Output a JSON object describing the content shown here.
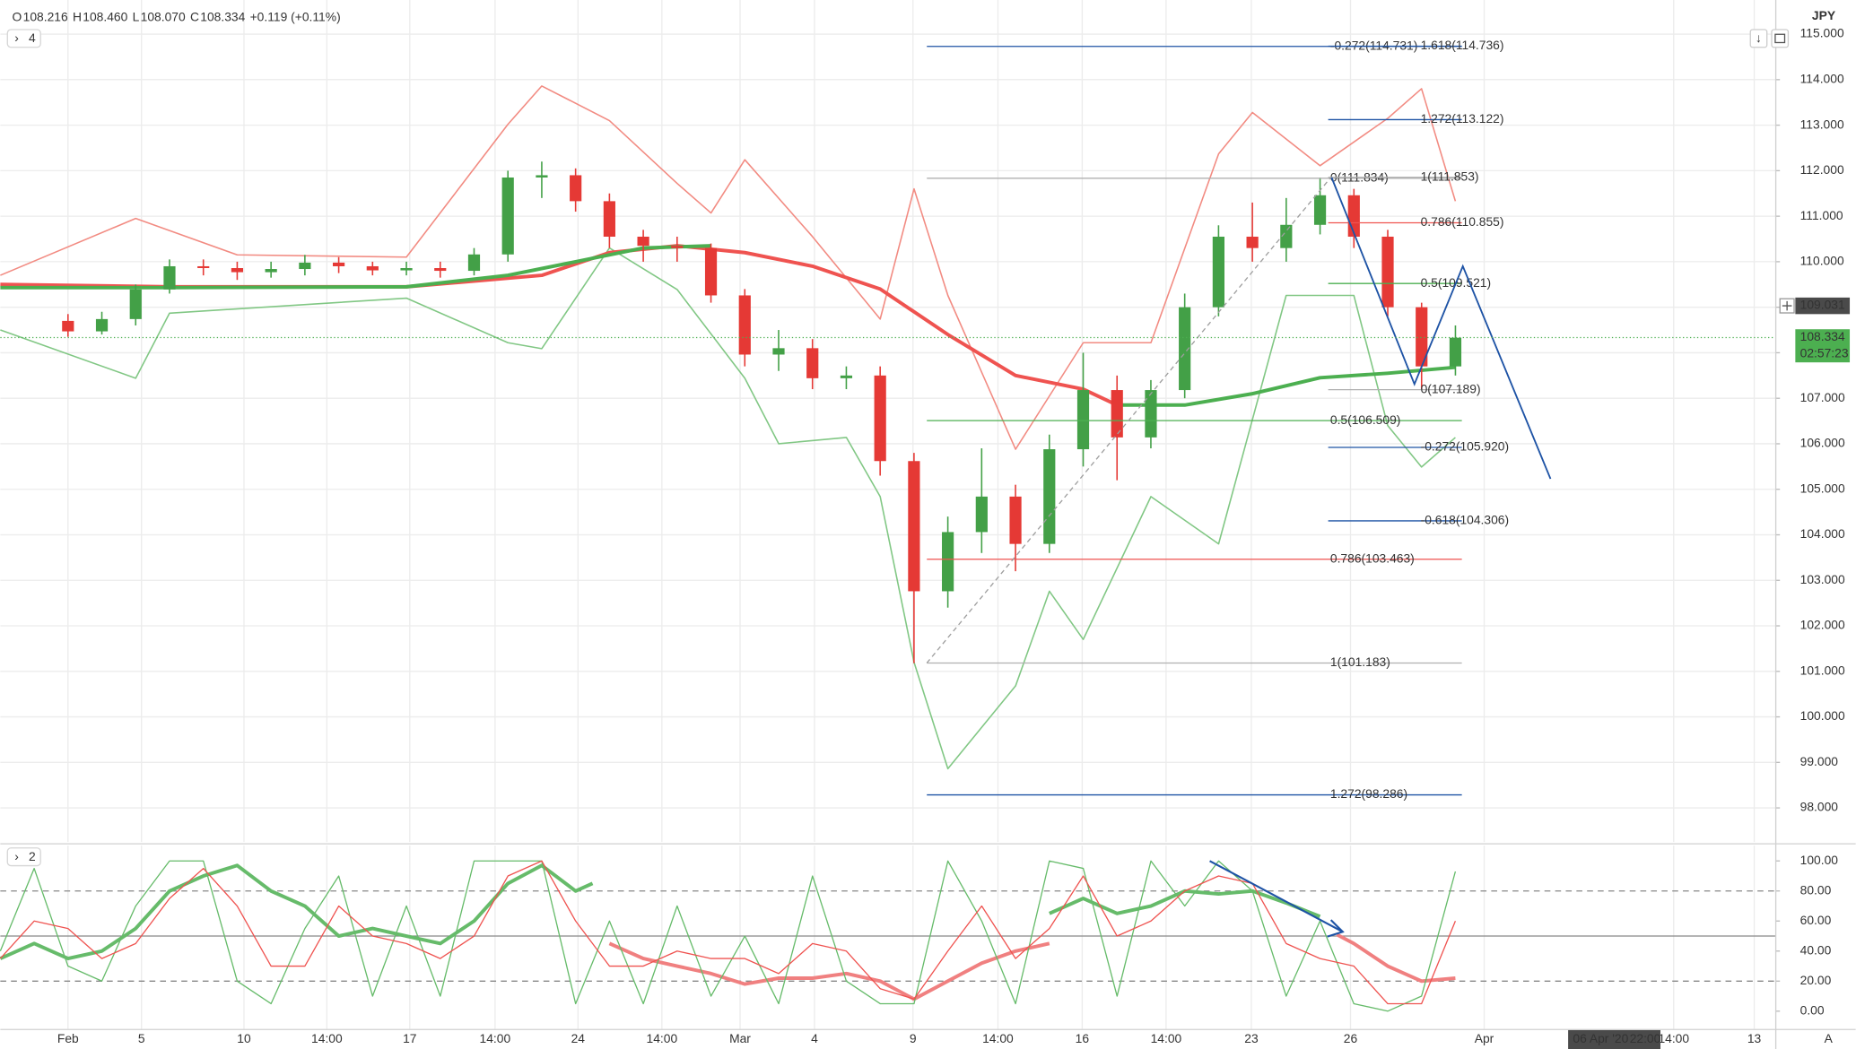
{
  "header": {
    "items": [
      {
        "key": "O",
        "value": "108.216"
      },
      {
        "key": "H",
        "value": "108.460"
      },
      {
        "key": "L",
        "value": "108.070"
      },
      {
        "key": "C",
        "value": "108.334"
      }
    ],
    "change": "+0.119 (+0.11%)"
  },
  "currency": "JPY",
  "auto_button": "A",
  "crosshair": {
    "price": 109.031,
    "date": "06 Apr '20",
    "time": "22:00"
  },
  "chart_data": [
    {
      "type": "candlestick",
      "indicator_count": "4",
      "up_color": "#43a047",
      "down_color": "#e53935",
      "grid": true,
      "xlim": [
        -2,
        50.45
      ],
      "ylim": [
        97.25,
        115.62
      ],
      "xticks": [
        {
          "value": 0,
          "label": "Feb"
        },
        {
          "value": 2.17,
          "label": "5"
        },
        {
          "value": 5.2,
          "label": "10"
        },
        {
          "value": 7.65,
          "label": "14:00"
        },
        {
          "value": 10.1,
          "label": "17"
        },
        {
          "value": 12.62,
          "label": "14:00"
        },
        {
          "value": 15.07,
          "label": "24"
        },
        {
          "value": 17.55,
          "label": "14:00"
        },
        {
          "value": 19.86,
          "label": "Mar"
        },
        {
          "value": 22.06,
          "label": "4"
        },
        {
          "value": 24.97,
          "label": "9"
        },
        {
          "value": 27.48,
          "label": "14:00"
        },
        {
          "value": 29.97,
          "label": "16"
        },
        {
          "value": 32.45,
          "label": "14:00"
        },
        {
          "value": 34.97,
          "label": "23"
        },
        {
          "value": 37.9,
          "label": "26"
        },
        {
          "value": 41.85,
          "label": "Apr"
        },
        {
          "value": 47.45,
          "label": "14:00"
        },
        {
          "value": 49.83,
          "label": "13"
        }
      ],
      "yticks": [
        {
          "value": 98,
          "label": "98.000"
        },
        {
          "value": 99,
          "label": "99.000"
        },
        {
          "value": 100,
          "label": "100.000"
        },
        {
          "value": 101,
          "label": "101.000"
        },
        {
          "value": 102,
          "label": "102.000"
        },
        {
          "value": 103,
          "label": "103.000"
        },
        {
          "value": 104,
          "label": "104.000"
        },
        {
          "value": 105,
          "label": "105.000"
        },
        {
          "value": 106,
          "label": "106.000"
        },
        {
          "value": 107,
          "label": "107.000"
        },
        {
          "value": 108,
          "label": "108.000"
        },
        {
          "value": 109,
          "label": "109.000"
        },
        {
          "value": 110,
          "label": "110.000"
        },
        {
          "value": 111,
          "label": "111.000"
        },
        {
          "value": 112,
          "label": "112.000"
        },
        {
          "value": 113,
          "label": "113.000"
        },
        {
          "value": 114,
          "label": "114.000"
        },
        {
          "value": 115,
          "label": "115.000"
        }
      ],
      "x": [
        0,
        1,
        2,
        3,
        4,
        5,
        6,
        7,
        8,
        9,
        10,
        11,
        12,
        13,
        14,
        15,
        16,
        17,
        18,
        19,
        20,
        21,
        22,
        23,
        24,
        25,
        26,
        27,
        28,
        29,
        30,
        31,
        32,
        33,
        34,
        35,
        36,
        37,
        38,
        39,
        40,
        41
      ],
      "open": [
        108.7,
        108.47,
        108.74,
        109.39,
        109.9,
        109.86,
        109.77,
        109.84,
        109.98,
        109.9,
        109.81,
        109.86,
        109.8,
        110.16,
        111.85,
        111.9,
        111.33,
        110.55,
        110.35,
        110.3,
        109.26,
        107.96,
        108.1,
        107.44,
        107.5,
        105.62,
        102.76,
        104.06,
        104.84,
        103.8,
        105.88,
        107.18,
        106.14,
        107.18,
        109.0,
        110.55,
        110.3,
        110.81,
        111.46,
        110.55,
        109.0,
        107.7
      ],
      "high": [
        108.85,
        108.9,
        109.5,
        110.05,
        110.05,
        110.0,
        110.0,
        110.15,
        110.1,
        110.0,
        110.0,
        110.0,
        110.3,
        112.0,
        112.2,
        112.05,
        111.5,
        110.7,
        110.55,
        110.4,
        109.4,
        108.5,
        108.3,
        107.7,
        107.7,
        105.8,
        104.4,
        105.9,
        105.1,
        106.2,
        108.0,
        107.5,
        107.4,
        109.3,
        110.8,
        111.3,
        111.4,
        111.85,
        111.6,
        110.7,
        109.1,
        108.6
      ],
      "low": [
        108.35,
        108.4,
        108.6,
        109.3,
        109.7,
        109.6,
        109.65,
        109.7,
        109.75,
        109.7,
        109.7,
        109.65,
        109.7,
        110.0,
        111.4,
        111.1,
        110.3,
        110.0,
        110.0,
        109.1,
        107.7,
        107.6,
        107.2,
        107.2,
        105.3,
        101.18,
        102.4,
        103.6,
        103.2,
        103.6,
        105.5,
        105.2,
        105.9,
        107.0,
        108.8,
        110.0,
        110.0,
        110.6,
        110.3,
        108.8,
        107.2,
        107.5
      ],
      "close": [
        108.47,
        108.74,
        109.39,
        109.9,
        109.86,
        109.77,
        109.84,
        109.98,
        109.9,
        109.81,
        109.86,
        109.8,
        110.16,
        111.85,
        111.9,
        111.33,
        110.55,
        110.35,
        110.3,
        109.26,
        107.96,
        108.1,
        107.44,
        107.5,
        105.62,
        102.76,
        104.06,
        104.84,
        103.8,
        105.88,
        107.18,
        106.14,
        107.18,
        109.0,
        110.55,
        110.3,
        110.81,
        111.46,
        110.55,
        109.0,
        107.7,
        108.33
      ],
      "indicators": [
        {
          "color": "#f28b82",
          "width": 1.2,
          "x": [
            -2,
            2,
            5,
            10,
            13,
            14,
            16,
            18,
            19,
            20,
            22,
            24,
            25,
            26,
            28,
            30,
            32,
            34,
            35,
            37,
            39,
            40,
            41
          ],
          "values": [
            109.7,
            110.95,
            110.15,
            110.1,
            113.02,
            113.86,
            113.1,
            111.72,
            111.07,
            112.24,
            110.55,
            108.74,
            111.6,
            109.26,
            105.88,
            108.22,
            108.22,
            112.37,
            113.28,
            112.11,
            113.15,
            113.8,
            111.33
          ]
        },
        {
          "color": "#81c784",
          "width": 1.2,
          "x": [
            -2,
            2,
            3,
            10,
            13,
            14,
            16,
            18,
            20,
            21,
            23,
            24,
            25,
            26,
            28,
            29,
            30,
            32,
            34,
            36,
            38,
            39,
            40,
            41
          ],
          "values": [
            108.5,
            107.44,
            108.87,
            109.2,
            108.22,
            108.09,
            110.3,
            109.39,
            107.44,
            106.0,
            106.14,
            104.84,
            101.2,
            98.86,
            100.68,
            102.76,
            101.7,
            104.84,
            103.8,
            109.26,
            109.26,
            106.4,
            105.49,
            106.14
          ]
        },
        {
          "color": "#ef5350",
          "width": 3,
          "x": [
            -2,
            3,
            10,
            14,
            16,
            18,
            20,
            22,
            24,
            26,
            28,
            30,
            31
          ],
          "values": [
            109.5,
            109.45,
            109.45,
            109.7,
            110.2,
            110.35,
            110.2,
            109.9,
            109.4,
            108.4,
            107.5,
            107.2,
            106.85
          ]
        },
        {
          "color": "#4caf50",
          "width": 3,
          "x": [
            -2,
            3,
            10,
            13,
            15,
            17,
            19,
            25,
            31,
            33,
            35,
            37,
            39,
            41
          ],
          "values": [
            109.43,
            109.43,
            109.45,
            109.7,
            110.0,
            110.3,
            110.35,
            null,
            106.85,
            106.85,
            107.1,
            107.45,
            107.55,
            107.68
          ]
        }
      ],
      "fibonacci": [
        {
          "x0": 25.38,
          "x1": 41.19,
          "label_x": 37.3,
          "levels": [
            {
              "label": "-0.272(114.731)",
              "value": 114.731,
              "color": "#1e53a5"
            },
            {
              "label": "0(111.834)",
              "value": 111.834,
              "color": "#b0b0b0"
            },
            {
              "label": "0.5(106.509)",
              "value": 106.509,
              "color": "#4caf50"
            },
            {
              "label": "0.786(103.463)",
              "value": 103.463,
              "color": "#ef5350"
            },
            {
              "label": "1(101.183)",
              "value": 101.183,
              "color": "#b0b0b0"
            },
            {
              "label": "1.272(98.286)",
              "value": 98.286,
              "color": "#1e53a5"
            }
          ]
        },
        {
          "x0": 37.24,
          "x1": 41.19,
          "label_x": 39.97,
          "levels": [
            {
              "label": "1.618(114.736)",
              "value": 114.736,
              "color": "#1e53a5"
            },
            {
              "label": "1.272(113.122)",
              "value": 113.122,
              "color": "#1e53a5"
            },
            {
              "label": "1(111.853)",
              "value": 111.853,
              "color": "#b0b0b0"
            },
            {
              "label": "0.786(110.855)",
              "value": 110.855,
              "color": "#ef5350"
            },
            {
              "label": "0.5(109.521)",
              "value": 109.521,
              "color": "#4caf50"
            },
            {
              "label": "0(107.189)",
              "value": 107.189,
              "color": "#b0b0b0"
            },
            {
              "label": "-0.272(105.920)",
              "value": 105.92,
              "color": "#1e53a5"
            },
            {
              "label": "-0.618(104.306)",
              "value": 104.306,
              "color": "#1e53a5"
            }
          ]
        }
      ],
      "trendlines": [
        {
          "color": "#9e9e9e",
          "dashed": true,
          "x": [
            25.38,
            37.3
          ],
          "y": [
            101.183,
            111.834
          ]
        },
        {
          "color": "#1e53a5",
          "dashed": false,
          "x": [
            37.34,
            39.79,
            41.22,
            43.81
          ],
          "y": [
            111.85,
            107.31,
            109.9,
            105.23
          ]
        }
      ],
      "last_price": 108.334,
      "last_price_color": "#4caf50",
      "countdown": "02:57:23"
    },
    {
      "type": "line",
      "indicator_count": "2",
      "ylim": [
        -11.8,
        110.2
      ],
      "yticks": [
        {
          "value": 0,
          "label": "0.00"
        },
        {
          "value": 20,
          "label": "20.00"
        },
        {
          "value": 40,
          "label": "40.00"
        },
        {
          "value": 60,
          "label": "60.00"
        },
        {
          "value": 80,
          "label": "80.00"
        },
        {
          "value": 100,
          "label": "100.00"
        }
      ],
      "levels": [
        {
          "value": 80,
          "dashed": true
        },
        {
          "value": 50,
          "dashed": false
        },
        {
          "value": 20,
          "dashed": true
        }
      ],
      "series": [
        {
          "color": "#66bb6a",
          "width": 3,
          "x": [
            -2,
            -1,
            0,
            1,
            2,
            3,
            4,
            5,
            6,
            7,
            8,
            9,
            10,
            11,
            12,
            13,
            14,
            15,
            15.5,
            16,
            29,
            30,
            31,
            32,
            33,
            34,
            35,
            36,
            37
          ],
          "values": [
            35,
            45,
            35,
            40,
            55,
            80,
            90,
            97,
            80,
            70,
            50,
            55,
            50,
            45,
            60,
            85,
            97,
            80,
            85,
            null,
            65,
            75,
            65,
            70,
            80,
            78,
            80,
            72,
            63
          ]
        },
        {
          "color": "#f08080",
          "width": 3,
          "x": [
            16,
            17,
            18,
            19,
            20,
            21,
            22,
            23,
            24,
            25,
            26,
            27,
            28,
            29,
            33,
            37.5,
            38,
            39,
            40,
            41
          ],
          "values": [
            45,
            35,
            30,
            25,
            18,
            22,
            22,
            25,
            20,
            8,
            20,
            32,
            40,
            45,
            null,
            51,
            45,
            30,
            20,
            22
          ]
        },
        {
          "color": "#66bb6a",
          "width": 1,
          "x": [
            -2,
            -1,
            0,
            1,
            2,
            3,
            4,
            5,
            6,
            7,
            8,
            9,
            10,
            11,
            12,
            13,
            14,
            15,
            16,
            17,
            18,
            19,
            20,
            21,
            22,
            23,
            24,
            25,
            26,
            27,
            28,
            29,
            30,
            31,
            32,
            33,
            34,
            35,
            36,
            37,
            38,
            39,
            40,
            41
          ],
          "values": [
            40,
            95,
            30,
            20,
            70,
            100,
            100,
            20,
            5,
            55,
            90,
            10,
            70,
            10,
            100,
            100,
            100,
            5,
            60,
            5,
            70,
            10,
            50,
            5,
            90,
            20,
            5,
            5,
            100,
            60,
            5,
            100,
            95,
            10,
            100,
            70,
            100,
            80,
            10,
            60,
            5,
            0,
            10,
            93
          ]
        },
        {
          "color": "#ef5350",
          "width": 1,
          "x": [
            -2,
            -1,
            0,
            1,
            2,
            3,
            4,
            5,
            6,
            7,
            8,
            9,
            10,
            11,
            12,
            13,
            14,
            15,
            16,
            17,
            18,
            19,
            20,
            21,
            22,
            23,
            24,
            25,
            26,
            27,
            28,
            29,
            30,
            31,
            32,
            33,
            34,
            35,
            36,
            37,
            38,
            39,
            40,
            41
          ],
          "values": [
            35,
            60,
            55,
            35,
            45,
            75,
            95,
            70,
            30,
            30,
            70,
            50,
            45,
            35,
            50,
            90,
            100,
            60,
            30,
            30,
            40,
            35,
            35,
            25,
            45,
            40,
            15,
            8,
            40,
            70,
            35,
            55,
            90,
            50,
            60,
            80,
            90,
            85,
            45,
            35,
            30,
            5,
            5,
            60
          ]
        }
      ],
      "arrow": {
        "color": "#1e53a5",
        "x": [
          33.74,
          37.67
        ],
        "y": [
          100,
          52.8
        ]
      }
    }
  ]
}
